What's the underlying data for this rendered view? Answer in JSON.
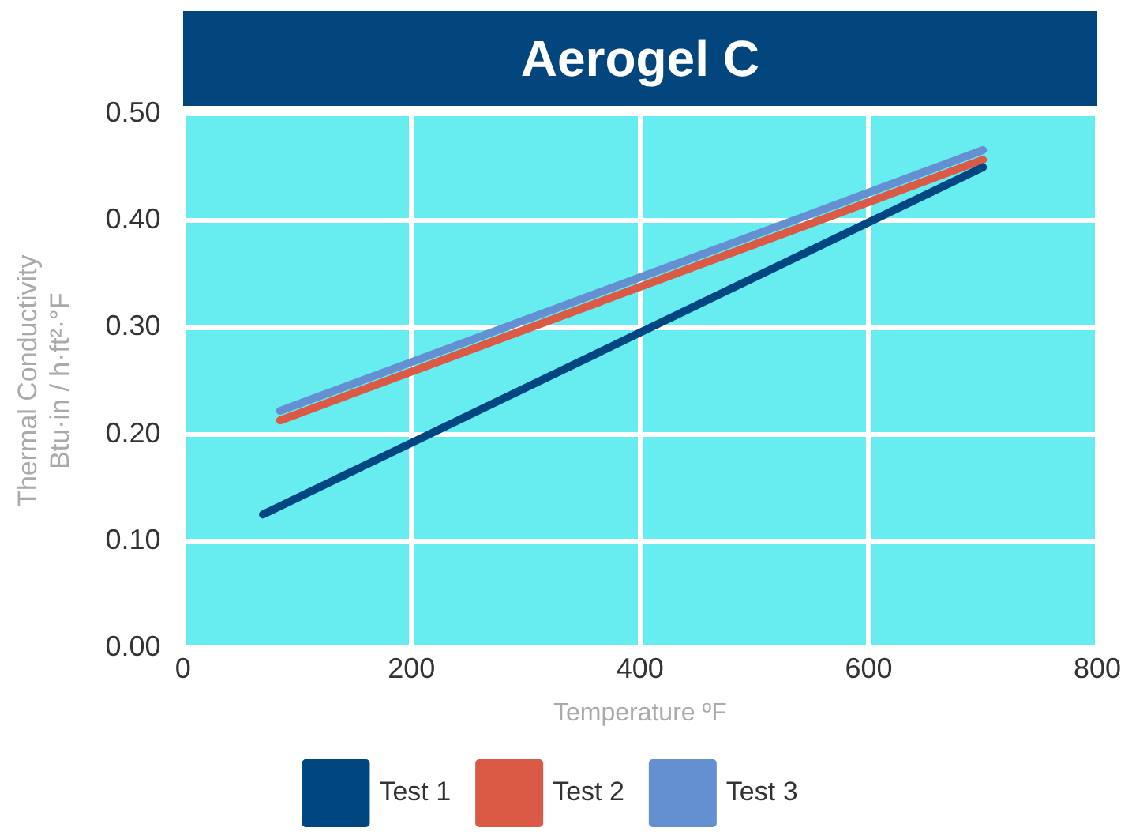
{
  "chart_data": {
    "type": "line",
    "title": "Aerogel C",
    "xlabel": "Temperature ºF",
    "ylabel": "Thermal Conductivity\nBtu·in / h·ft²·°F",
    "series": [
      {
        "name": "Test 1",
        "color": "#004680",
        "x": [
          70,
          700
        ],
        "values": [
          0.125,
          0.45
        ]
      },
      {
        "name": "Test 2",
        "color": "#db5a45",
        "x": [
          85,
          700
        ],
        "values": [
          0.213,
          0.457
        ]
      },
      {
        "name": "Test 3",
        "color": "#6490d2",
        "x": [
          85,
          700
        ],
        "values": [
          0.222,
          0.466
        ]
      }
    ],
    "xlim": [
      0,
      800
    ],
    "xticks": [
      0,
      200,
      400,
      600,
      800
    ],
    "ylim": [
      0,
      0.5
    ],
    "yticks": [
      {
        "value": 0,
        "label": "0.00"
      },
      {
        "value": 0.1,
        "label": "0.10"
      },
      {
        "value": 0.2,
        "label": "0.20"
      },
      {
        "value": 0.3,
        "label": "0.30"
      },
      {
        "value": 0.4,
        "label": "0.40"
      },
      {
        "value": 0.5,
        "label": "0.50"
      }
    ],
    "grid": true,
    "legend": "bottom",
    "marker": "none",
    "line_style": "solid"
  }
}
